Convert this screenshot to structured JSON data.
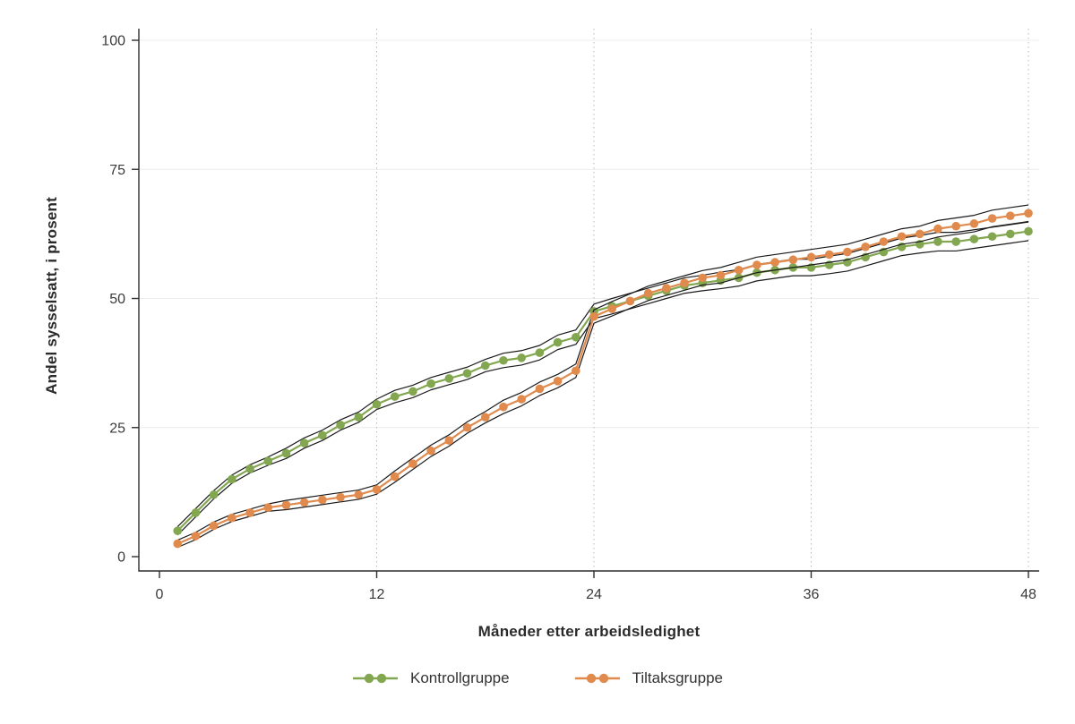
{
  "figure": {
    "background": "#ffffff"
  },
  "chart_data": {
    "type": "line",
    "title": "",
    "xlabel": "Måneder etter arbeidsledighet",
    "ylabel": "Andel sysselsatt, i prosent",
    "xlim": [
      0,
      48
    ],
    "ylim": [
      0,
      100
    ],
    "xticks": [
      0,
      12,
      24,
      36,
      48
    ],
    "yticks": [
      0,
      25,
      50,
      75,
      100
    ],
    "grid": {
      "vertical": "dotted",
      "horizontal": "faint"
    },
    "legend_position": "bottom",
    "ci_color": "#1a1a1a",
    "axis_color": "#2f2f2f",
    "tick_label_color": "#3a3a3a",
    "x": [
      1,
      2,
      3,
      4,
      5,
      6,
      7,
      8,
      9,
      10,
      11,
      12,
      13,
      14,
      15,
      16,
      17,
      18,
      19,
      20,
      21,
      22,
      23,
      24,
      25,
      26,
      27,
      28,
      29,
      30,
      31,
      32,
      33,
      34,
      35,
      36,
      37,
      38,
      39,
      40,
      41,
      42,
      43,
      44,
      45,
      46,
      47,
      48
    ],
    "series": [
      {
        "name": "Kontrollgruppe",
        "color": "#82a750",
        "values": [
          5,
          8.5,
          12,
          15,
          17,
          18.5,
          20,
          22,
          23.5,
          25.5,
          27,
          29.5,
          31,
          32,
          33.5,
          34.5,
          35.5,
          37,
          38,
          38.5,
          39.5,
          41.5,
          42.5,
          47.5,
          48.5,
          49.5,
          50.5,
          51.5,
          52.5,
          53,
          53.5,
          54,
          55,
          55.5,
          56,
          56,
          56.5,
          57,
          58,
          59,
          60,
          60.5,
          61,
          61,
          61.5,
          62,
          62.5,
          63
        ],
        "ci_halfwidth": [
          0.8,
          0.8,
          0.8,
          0.8,
          0.8,
          0.8,
          1,
          1,
          1,
          1,
          1,
          1,
          1.2,
          1.2,
          1.2,
          1.2,
          1.2,
          1.2,
          1.4,
          1.4,
          1.4,
          1.4,
          1.4,
          1.4,
          1.5,
          1.5,
          1.5,
          1.5,
          1.5,
          1.5,
          1.6,
          1.6,
          1.6,
          1.6,
          1.6,
          1.6,
          1.7,
          1.7,
          1.7,
          1.7,
          1.7,
          1.7,
          1.8,
          1.8,
          1.8,
          1.8,
          1.8,
          1.8
        ]
      },
      {
        "name": "Tiltaksgruppe",
        "color": "#e08a4d",
        "values": [
          2.5,
          4,
          6,
          7.5,
          8.5,
          9.5,
          10,
          10.5,
          11,
          11.5,
          12,
          13,
          15.5,
          18,
          20.5,
          22.5,
          25,
          27,
          29,
          30.5,
          32.5,
          34,
          36,
          46.5,
          48,
          49.5,
          51,
          52,
          53,
          54,
          54.5,
          55.5,
          56.5,
          57,
          57.5,
          58,
          58.5,
          59,
          60,
          61,
          62,
          62.5,
          63.5,
          64,
          64.5,
          65.5,
          66,
          66.5
        ],
        "ci_halfwidth": [
          0.7,
          0.7,
          0.7,
          0.7,
          0.7,
          0.7,
          0.9,
          0.9,
          0.9,
          0.9,
          0.9,
          0.9,
          1.1,
          1.1,
          1.1,
          1.1,
          1.1,
          1.1,
          1.3,
          1.3,
          1.3,
          1.3,
          1.3,
          1.3,
          1.4,
          1.4,
          1.4,
          1.4,
          1.4,
          1.4,
          1.5,
          1.5,
          1.5,
          1.5,
          1.5,
          1.5,
          1.5,
          1.5,
          1.5,
          1.5,
          1.5,
          1.5,
          1.6,
          1.6,
          1.6,
          1.6,
          1.6,
          1.6
        ]
      }
    ]
  }
}
